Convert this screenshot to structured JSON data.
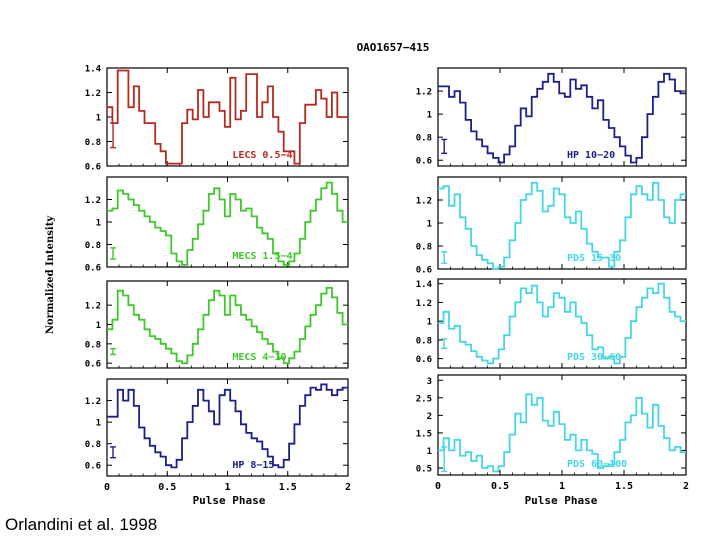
{
  "figure": {
    "title": "OAO1657−415",
    "ylabel": "Normalized Intensity",
    "xlabel": "Pulse Phase",
    "credit": "Orlandini et al. 1998"
  },
  "chart_data": [
    {
      "type": "line",
      "title": "LECS 0.5−4",
      "color": "#b52a1e",
      "xlim": [
        0,
        2
      ],
      "ylim": [
        0.6,
        1.4
      ],
      "yticks": [
        0.6,
        0.8,
        1,
        1.2,
        1.4
      ],
      "ytick_labels": [
        "0.6",
        "0.8",
        "1",
        "1.2",
        "1.4"
      ],
      "errbar": {
        "x": 0.05,
        "y": 0.85,
        "err": 0.1
      },
      "y": [
        1.08,
        0.95,
        1.38,
        1.38,
        1.08,
        1.25,
        1.05,
        0.95,
        0.95,
        0.78,
        0.72,
        0.62,
        0.62,
        0.62,
        0.95,
        1.06,
        0.98,
        1.22,
        1.0,
        1.12,
        1.12,
        1.05,
        0.92,
        1.32,
        0.98,
        1.05,
        1.35,
        1.35,
        1.0,
        1.12,
        1.25,
        1.0,
        0.88,
        0.72,
        0.72,
        0.62,
        0.95,
        1.1,
        1.1,
        1.22,
        1.15,
        1.0,
        1.2,
        1.0,
        1.0
      ]
    },
    {
      "type": "line",
      "title": "HP 10−20",
      "color": "#1a1f8a",
      "xlim": [
        0,
        2
      ],
      "ylim": [
        0.55,
        1.4
      ],
      "yticks": [
        0.6,
        0.8,
        1,
        1.2
      ],
      "ytick_labels": [
        "0.6",
        "0.8",
        "1",
        "1.2"
      ],
      "errbar": {
        "x": 0.05,
        "y": 0.72,
        "err": 0.06
      },
      "y": [
        1.24,
        1.24,
        1.15,
        1.2,
        1.1,
        0.95,
        0.85,
        0.78,
        0.72,
        0.66,
        0.62,
        0.58,
        0.65,
        0.72,
        0.9,
        1.05,
        0.98,
        1.15,
        1.22,
        1.28,
        1.35,
        1.28,
        1.18,
        1.15,
        1.3,
        1.22,
        1.25,
        1.15,
        1.05,
        1.12,
        0.95,
        0.88,
        0.8,
        0.72,
        0.64,
        0.58,
        0.62,
        0.8,
        1.0,
        1.15,
        1.28,
        1.35,
        1.3,
        1.2,
        1.18
      ]
    },
    {
      "type": "line",
      "title": "MECS 1.5−4",
      "color": "#3ec82a",
      "xlim": [
        0,
        2
      ],
      "ylim": [
        0.6,
        1.4
      ],
      "yticks": [
        0.6,
        0.8,
        1,
        1.2
      ],
      "ytick_labels": [
        "0.6",
        "0.8",
        "1",
        "1.2"
      ],
      "errbar": {
        "x": 0.05,
        "y": 0.72,
        "err": 0.05
      },
      "y": [
        1.1,
        1.12,
        1.28,
        1.25,
        1.2,
        1.15,
        1.1,
        1.05,
        1.0,
        0.95,
        0.92,
        0.88,
        0.72,
        0.65,
        0.62,
        0.75,
        0.85,
        0.98,
        1.1,
        1.25,
        1.3,
        1.2,
        1.05,
        1.25,
        1.2,
        1.1,
        1.12,
        1.05,
        0.95,
        0.9,
        0.85,
        0.72,
        0.65,
        0.62,
        0.65,
        0.72,
        0.85,
        1.0,
        1.1,
        1.2,
        1.3,
        1.35,
        1.25,
        1.1,
        1.0
      ]
    },
    {
      "type": "line",
      "title": "PDS 15−30",
      "color": "#45d6e6",
      "xlim": [
        0,
        2
      ],
      "ylim": [
        0.6,
        1.4
      ],
      "yticks": [
        0.6,
        0.8,
        1,
        1.2
      ],
      "ytick_labels": [
        "0.6",
        "0.8",
        "1",
        "1.2"
      ],
      "errbar": {
        "x": 0.05,
        "y": 0.7,
        "err": 0.05
      },
      "y": [
        1.3,
        1.32,
        1.15,
        1.25,
        1.05,
        0.95,
        0.8,
        0.72,
        0.68,
        0.65,
        0.6,
        0.62,
        0.7,
        0.85,
        1.0,
        1.2,
        1.25,
        1.35,
        1.28,
        1.1,
        1.15,
        1.3,
        1.25,
        1.05,
        1.0,
        1.1,
        0.95,
        0.82,
        0.75,
        0.7,
        0.7,
        0.62,
        0.75,
        0.85,
        1.05,
        1.25,
        1.32,
        1.25,
        1.2,
        1.35,
        1.2,
        1.05,
        1.0,
        1.2,
        1.25
      ]
    },
    {
      "type": "line",
      "title": "MECS 4−10",
      "color": "#3ec82a",
      "xlim": [
        0,
        2
      ],
      "ylim": [
        0.55,
        1.45
      ],
      "yticks": [
        0.6,
        0.8,
        1,
        1.2
      ],
      "ytick_labels": [
        "0.6",
        "0.8",
        "1",
        "1.2"
      ],
      "errbar": {
        "x": 0.05,
        "y": 0.72,
        "err": 0.03
      },
      "y": [
        0.95,
        1.05,
        1.35,
        1.3,
        1.2,
        1.1,
        1.05,
        0.95,
        0.88,
        0.85,
        0.8,
        0.75,
        0.7,
        0.62,
        0.6,
        0.68,
        0.8,
        0.95,
        1.1,
        1.25,
        1.35,
        1.3,
        1.1,
        1.3,
        1.2,
        1.1,
        1.05,
        0.98,
        0.92,
        0.85,
        0.8,
        0.72,
        0.65,
        0.6,
        0.65,
        0.72,
        0.85,
        0.98,
        1.1,
        1.2,
        1.32,
        1.38,
        1.28,
        1.12,
        1.0
      ]
    },
    {
      "type": "line",
      "title": "PDS 30−60",
      "color": "#45d6e6",
      "xlim": [
        0,
        2
      ],
      "ylim": [
        0.5,
        1.45
      ],
      "yticks": [
        0.6,
        0.8,
        1,
        1.2,
        1.4
      ],
      "ytick_labels": [
        "0.6",
        "0.8",
        "1",
        "1.2",
        "1.4"
      ],
      "errbar": {
        "x": 0.05,
        "y": 0.76,
        "err": 0.05
      },
      "y": [
        0.98,
        1.1,
        0.92,
        0.95,
        0.78,
        0.75,
        0.68,
        0.62,
        0.58,
        0.55,
        0.6,
        0.7,
        0.85,
        1.05,
        1.2,
        1.35,
        1.3,
        1.38,
        1.2,
        1.05,
        1.15,
        1.3,
        1.25,
        1.1,
        1.2,
        1.05,
        0.98,
        0.85,
        0.7,
        0.72,
        0.6,
        0.62,
        0.55,
        0.62,
        0.82,
        1.0,
        1.15,
        1.25,
        1.35,
        1.3,
        1.4,
        1.25,
        1.1,
        1.05,
        1.0
      ]
    },
    {
      "type": "line",
      "title": "HP 8−15",
      "color": "#1a1f8a",
      "xlim": [
        0,
        2
      ],
      "ylim": [
        0.5,
        1.4
      ],
      "yticks": [
        0.6,
        0.8,
        1,
        1.2
      ],
      "ytick_labels": [
        "0.6",
        "0.8",
        "1",
        "1.2"
      ],
      "errbar": {
        "x": 0.05,
        "y": 0.72,
        "err": 0.05
      },
      "y": [
        1.05,
        1.05,
        1.3,
        1.2,
        1.3,
        1.15,
        0.95,
        0.85,
        0.78,
        0.72,
        0.68,
        0.6,
        0.58,
        0.65,
        0.85,
        1.0,
        1.15,
        1.3,
        1.2,
        1.1,
        0.98,
        1.25,
        1.3,
        1.2,
        1.1,
        0.98,
        0.9,
        0.85,
        0.82,
        0.75,
        0.68,
        0.6,
        0.58,
        0.65,
        0.8,
        0.98,
        1.15,
        1.25,
        1.32,
        1.3,
        1.35,
        1.3,
        1.25,
        1.3,
        1.32
      ]
    },
    {
      "type": "line",
      "title": "PDS 60−100",
      "color": "#45d6e6",
      "xlim": [
        0,
        2
      ],
      "ylim": [
        0.3,
        3.15
      ],
      "yticks": [
        0.5,
        1,
        1.5,
        2,
        2.5,
        3
      ],
      "ytick_labels": [
        "0.5",
        "1",
        "1.5",
        "2",
        "2.5",
        "3"
      ],
      "errbar": {
        "x": 0.05,
        "y": 0.75,
        "err": 0.35
      },
      "y": [
        1.0,
        1.35,
        1.0,
        1.3,
        0.85,
        0.95,
        0.7,
        0.85,
        0.5,
        0.55,
        0.4,
        0.55,
        0.95,
        1.45,
        2.05,
        1.8,
        2.6,
        2.3,
        2.5,
        1.85,
        1.7,
        2.1,
        1.75,
        1.3,
        1.45,
        1.0,
        1.3,
        1.0,
        0.9,
        0.5,
        0.55,
        0.6,
        0.95,
        1.3,
        1.8,
        2.0,
        2.5,
        2.05,
        1.65,
        2.3,
        1.7,
        1.35,
        1.0,
        1.1,
        0.95
      ]
    }
  ]
}
